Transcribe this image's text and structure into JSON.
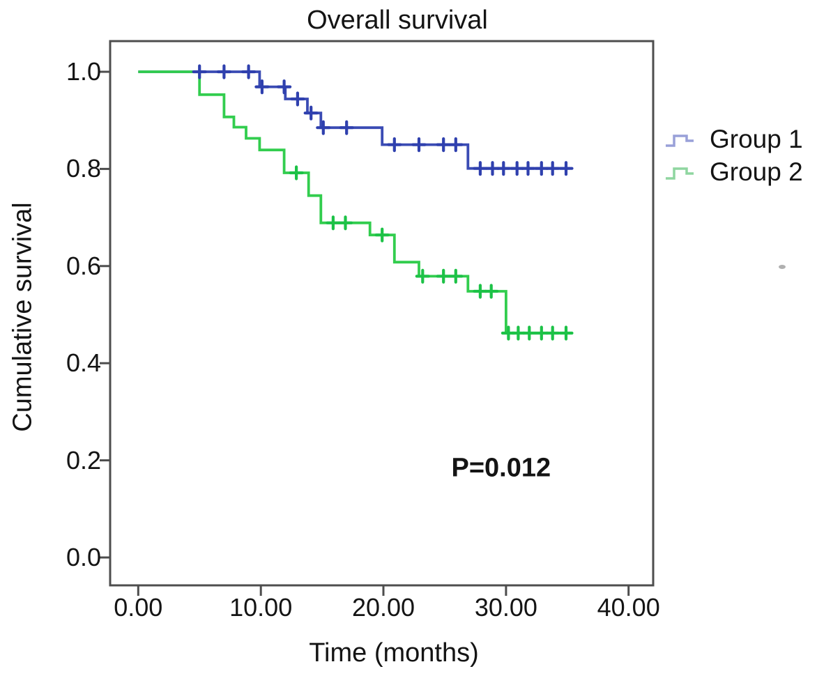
{
  "chart_data": {
    "type": "line",
    "subtype": "kaplan_meier_step",
    "title": "Overall survival",
    "xlabel": "Time (months)",
    "ylabel": "Cumulative survival",
    "x_range": [
      0,
      40
    ],
    "y_range": [
      0.0,
      1.0
    ],
    "grid": false,
    "x_ticks": {
      "labels": [
        "0.00",
        "10.00",
        "20.00",
        "30.00",
        "40.00"
      ],
      "values": [
        0,
        10,
        20,
        30,
        40
      ]
    },
    "y_ticks": {
      "labels": [
        "1.0",
        "0.8",
        "0.6",
        "0.4",
        "0.2",
        "0.0"
      ],
      "values": [
        1.0,
        0.8,
        0.6,
        0.4,
        0.2,
        0.0
      ]
    },
    "legend": {
      "position": "right",
      "items": [
        {
          "label": "Group 1",
          "symbol": "step-line",
          "symbol_color": "#99a0d8"
        },
        {
          "label": "Group 2",
          "symbol": "step-line",
          "symbol_color": "#8fd6a0"
        }
      ]
    },
    "annotations": [
      {
        "text": "P=0.012",
        "x": 29.6,
        "y": 0.184,
        "bold": true
      }
    ],
    "p_value": 0.012,
    "censor_marker": "plus",
    "series": [
      {
        "name": "Group 1",
        "color": "#3a4bb4",
        "censor_color": "#2f40ae",
        "start": [
          0,
          1.0
        ],
        "end_time": 35.2,
        "drops": [
          [
            9.9,
            0.969
          ],
          [
            12.0,
            0.944
          ],
          [
            13.8,
            0.915
          ],
          [
            14.9,
            0.885
          ],
          [
            19.9,
            0.85
          ],
          [
            26.9,
            0.801
          ]
        ],
        "censors": [
          [
            5.0,
            1.0
          ],
          [
            7.0,
            1.0
          ],
          [
            9.0,
            1.0
          ],
          [
            10.1,
            0.969
          ],
          [
            11.9,
            0.969
          ],
          [
            13.0,
            0.944
          ],
          [
            14.1,
            0.915
          ],
          [
            15.1,
            0.885
          ],
          [
            17.0,
            0.885
          ],
          [
            20.9,
            0.85
          ],
          [
            22.9,
            0.85
          ],
          [
            24.9,
            0.85
          ],
          [
            25.9,
            0.85
          ],
          [
            27.9,
            0.801
          ],
          [
            28.9,
            0.801
          ],
          [
            29.8,
            0.801
          ],
          [
            30.9,
            0.801
          ],
          [
            31.8,
            0.801
          ],
          [
            32.9,
            0.801
          ],
          [
            33.8,
            0.801
          ],
          [
            34.9,
            0.801
          ]
        ]
      },
      {
        "name": "Group 2",
        "color": "#32cd4e",
        "censor_color": "#1dc247",
        "start": [
          0,
          1.0
        ],
        "end_time": 35.2,
        "drops": [
          [
            5.0,
            0.953
          ],
          [
            7.0,
            0.907
          ],
          [
            7.8,
            0.886
          ],
          [
            8.8,
            0.863
          ],
          [
            9.9,
            0.839
          ],
          [
            11.9,
            0.792
          ],
          [
            13.9,
            0.745
          ],
          [
            14.9,
            0.689
          ],
          [
            18.9,
            0.664
          ],
          [
            20.9,
            0.608
          ],
          [
            22.9,
            0.579
          ],
          [
            26.9,
            0.548
          ],
          [
            30.0,
            0.462
          ]
        ],
        "censors": [
          [
            12.9,
            0.792
          ],
          [
            15.9,
            0.689
          ],
          [
            16.9,
            0.689
          ],
          [
            19.9,
            0.664
          ],
          [
            23.2,
            0.579
          ],
          [
            24.9,
            0.579
          ],
          [
            25.9,
            0.579
          ],
          [
            27.9,
            0.548
          ],
          [
            28.8,
            0.548
          ],
          [
            30.2,
            0.462
          ],
          [
            31.0,
            0.462
          ],
          [
            31.9,
            0.462
          ],
          [
            32.9,
            0.462
          ],
          [
            33.8,
            0.462
          ],
          [
            34.9,
            0.462
          ]
        ]
      }
    ],
    "colors": {
      "axis": "#4d4d4d",
      "text": "#141414",
      "group1_line": "#3a4bb4",
      "group2_line": "#32cd4e"
    }
  }
}
